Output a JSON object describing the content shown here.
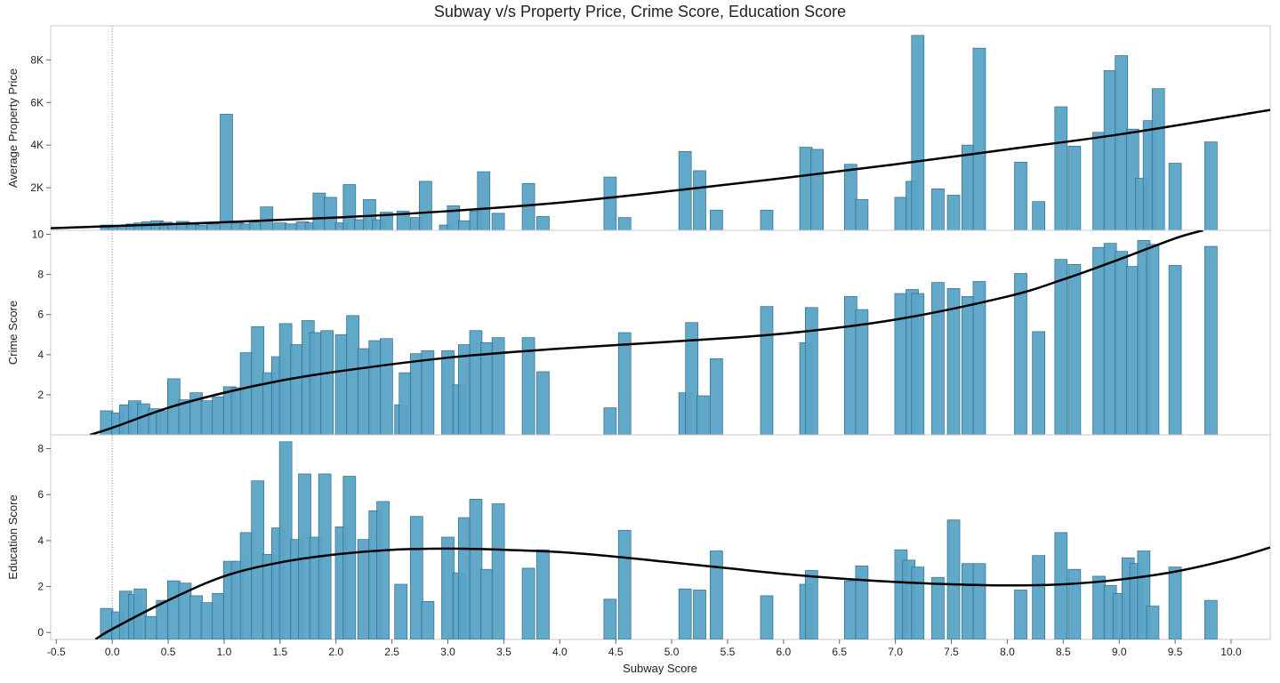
{
  "chart_data": {
    "type": "bar",
    "title": "Subway v/s Property Price, Crime Score, Education Score",
    "xlabel": "Subway Score",
    "xlim": [
      -0.55,
      10.35
    ],
    "x_ticks": [
      {
        "v": -0.5,
        "label": "-0.5"
      },
      {
        "v": 0.0,
        "label": "0.0"
      },
      {
        "v": 0.5,
        "label": "0.5"
      },
      {
        "v": 1.0,
        "label": "1.0"
      },
      {
        "v": 1.5,
        "label": "1.5"
      },
      {
        "v": 2.0,
        "label": "2.0"
      },
      {
        "v": 2.5,
        "label": "2.5"
      },
      {
        "v": 3.0,
        "label": "3.0"
      },
      {
        "v": 3.5,
        "label": "3.5"
      },
      {
        "v": 4.0,
        "label": "4.0"
      },
      {
        "v": 4.5,
        "label": "4.5"
      },
      {
        "v": 5.0,
        "label": "5.0"
      },
      {
        "v": 5.5,
        "label": "5.5"
      },
      {
        "v": 6.0,
        "label": "6.0"
      },
      {
        "v": 6.5,
        "label": "6.5"
      },
      {
        "v": 7.0,
        "label": "7.0"
      },
      {
        "v": 7.5,
        "label": "7.5"
      },
      {
        "v": 8.0,
        "label": "8.0"
      },
      {
        "v": 8.5,
        "label": "8.5"
      },
      {
        "v": 9.0,
        "label": "9.0"
      },
      {
        "v": 9.5,
        "label": "9.5"
      },
      {
        "v": 10.0,
        "label": "10.0"
      }
    ],
    "bar_color": "#5aa3c6",
    "bar_border_color": "#2f6d8f",
    "trend_color": "#000000",
    "panels": [
      {
        "ylabel": "Average Property Price",
        "ylim": [
          0,
          9600
        ],
        "y_ticks": [
          {
            "v": 2000,
            "label": "2K"
          },
          {
            "v": 4000,
            "label": "4K"
          },
          {
            "v": 6000,
            "label": "6K"
          },
          {
            "v": 8000,
            "label": "8K"
          }
        ],
        "trend": {
          "x": [
            -0.55,
            0.0,
            1.0,
            2.0,
            3.0,
            4.0,
            5.0,
            6.0,
            7.0,
            8.0,
            9.0,
            10.35
          ],
          "y": [
            100,
            200,
            380,
            600,
            900,
            1300,
            1850,
            2450,
            3100,
            3800,
            4500,
            5650
          ]
        },
        "bars": [
          {
            "x": -0.05,
            "y": 250
          },
          {
            "x": 0.02,
            "y": 200
          },
          {
            "x": 0.1,
            "y": 230
          },
          {
            "x": 0.18,
            "y": 300
          },
          {
            "x": 0.25,
            "y": 350
          },
          {
            "x": 0.32,
            "y": 400
          },
          {
            "x": 0.4,
            "y": 450
          },
          {
            "x": 0.48,
            "y": 380
          },
          {
            "x": 0.55,
            "y": 300
          },
          {
            "x": 0.63,
            "y": 420
          },
          {
            "x": 0.72,
            "y": 280
          },
          {
            "x": 0.8,
            "y": 250
          },
          {
            "x": 0.9,
            "y": 300
          },
          {
            "x": 1.02,
            "y": 5450
          },
          {
            "x": 1.12,
            "y": 350
          },
          {
            "x": 1.2,
            "y": 300
          },
          {
            "x": 1.28,
            "y": 400
          },
          {
            "x": 1.38,
            "y": 1100
          },
          {
            "x": 1.5,
            "y": 350
          },
          {
            "x": 1.6,
            "y": 300
          },
          {
            "x": 1.7,
            "y": 400
          },
          {
            "x": 1.78,
            "y": 350
          },
          {
            "x": 1.85,
            "y": 1750
          },
          {
            "x": 1.95,
            "y": 1550
          },
          {
            "x": 2.05,
            "y": 350
          },
          {
            "x": 2.12,
            "y": 2150
          },
          {
            "x": 2.22,
            "y": 500
          },
          {
            "x": 2.3,
            "y": 1450
          },
          {
            "x": 2.38,
            "y": 500
          },
          {
            "x": 2.45,
            "y": 850
          },
          {
            "x": 2.6,
            "y": 900
          },
          {
            "x": 2.72,
            "y": 600
          },
          {
            "x": 2.8,
            "y": 2300
          },
          {
            "x": 2.98,
            "y": 250
          },
          {
            "x": 3.05,
            "y": 1150
          },
          {
            "x": 3.15,
            "y": 450
          },
          {
            "x": 3.25,
            "y": 900
          },
          {
            "x": 3.32,
            "y": 2750
          },
          {
            "x": 3.45,
            "y": 800
          },
          {
            "x": 3.72,
            "y": 2200
          },
          {
            "x": 3.85,
            "y": 650
          },
          {
            "x": 4.45,
            "y": 2500
          },
          {
            "x": 4.58,
            "y": 600
          },
          {
            "x": 5.12,
            "y": 3700
          },
          {
            "x": 5.25,
            "y": 2800
          },
          {
            "x": 5.4,
            "y": 950
          },
          {
            "x": 5.85,
            "y": 950
          },
          {
            "x": 6.2,
            "y": 3900
          },
          {
            "x": 6.3,
            "y": 3800
          },
          {
            "x": 6.6,
            "y": 3100
          },
          {
            "x": 6.7,
            "y": 1450
          },
          {
            "x": 7.05,
            "y": 1550
          },
          {
            "x": 7.15,
            "y": 2300
          },
          {
            "x": 7.2,
            "y": 9150
          },
          {
            "x": 7.38,
            "y": 1950
          },
          {
            "x": 7.52,
            "y": 1650
          },
          {
            "x": 7.65,
            "y": 4000
          },
          {
            "x": 7.75,
            "y": 8550
          },
          {
            "x": 8.12,
            "y": 3200
          },
          {
            "x": 8.28,
            "y": 1350
          },
          {
            "x": 8.48,
            "y": 5800
          },
          {
            "x": 8.6,
            "y": 3950
          },
          {
            "x": 8.82,
            "y": 4600
          },
          {
            "x": 8.92,
            "y": 7500
          },
          {
            "x": 9.02,
            "y": 8200
          },
          {
            "x": 9.12,
            "y": 4750
          },
          {
            "x": 9.2,
            "y": 2450
          },
          {
            "x": 9.27,
            "y": 5150
          },
          {
            "x": 9.35,
            "y": 6650
          },
          {
            "x": 9.5,
            "y": 3150
          },
          {
            "x": 9.82,
            "y": 4150
          }
        ]
      },
      {
        "ylabel": "Crime Score",
        "ylim": [
          0,
          10.2
        ],
        "y_ticks": [
          {
            "v": 2,
            "label": "2"
          },
          {
            "v": 4,
            "label": "4"
          },
          {
            "v": 6,
            "label": "6"
          },
          {
            "v": 8,
            "label": "8"
          },
          {
            "v": 10,
            "label": "10"
          }
        ],
        "trend": {
          "x": [
            -0.2,
            0.0,
            0.5,
            1.0,
            1.5,
            2.0,
            3.0,
            4.0,
            5.0,
            6.0,
            7.0,
            8.0,
            8.5,
            9.0,
            9.5,
            9.75
          ],
          "y": [
            0.0,
            0.35,
            1.35,
            2.1,
            2.7,
            3.15,
            3.85,
            4.3,
            4.65,
            5.05,
            5.75,
            6.9,
            7.75,
            8.75,
            9.8,
            10.2
          ]
        },
        "bars": [
          {
            "x": -0.05,
            "y": 1.2
          },
          {
            "x": 0.05,
            "y": 1.1
          },
          {
            "x": 0.12,
            "y": 1.5
          },
          {
            "x": 0.2,
            "y": 1.7
          },
          {
            "x": 0.28,
            "y": 1.55
          },
          {
            "x": 0.38,
            "y": 1.3
          },
          {
            "x": 0.45,
            "y": 1.2
          },
          {
            "x": 0.55,
            "y": 2.8
          },
          {
            "x": 0.65,
            "y": 1.75
          },
          {
            "x": 0.75,
            "y": 2.1
          },
          {
            "x": 0.85,
            "y": 1.7
          },
          {
            "x": 0.95,
            "y": 1.9
          },
          {
            "x": 1.05,
            "y": 2.4
          },
          {
            "x": 1.12,
            "y": 2.35
          },
          {
            "x": 1.2,
            "y": 4.1
          },
          {
            "x": 1.3,
            "y": 5.4
          },
          {
            "x": 1.4,
            "y": 3.1
          },
          {
            "x": 1.48,
            "y": 3.9
          },
          {
            "x": 1.55,
            "y": 5.55
          },
          {
            "x": 1.65,
            "y": 4.5
          },
          {
            "x": 1.75,
            "y": 5.7
          },
          {
            "x": 1.82,
            "y": 5.1
          },
          {
            "x": 1.92,
            "y": 5.2
          },
          {
            "x": 2.05,
            "y": 5.0
          },
          {
            "x": 2.15,
            "y": 5.95
          },
          {
            "x": 2.25,
            "y": 4.3
          },
          {
            "x": 2.35,
            "y": 4.7
          },
          {
            "x": 2.45,
            "y": 4.8
          },
          {
            "x": 2.58,
            "y": 1.5
          },
          {
            "x": 2.62,
            "y": 3.1
          },
          {
            "x": 2.72,
            "y": 4.05
          },
          {
            "x": 2.82,
            "y": 4.2
          },
          {
            "x": 3.0,
            "y": 4.2
          },
          {
            "x": 3.1,
            "y": 2.5
          },
          {
            "x": 3.15,
            "y": 4.5
          },
          {
            "x": 3.25,
            "y": 5.2
          },
          {
            "x": 3.35,
            "y": 4.6
          },
          {
            "x": 3.45,
            "y": 4.85
          },
          {
            "x": 3.72,
            "y": 4.85
          },
          {
            "x": 3.85,
            "y": 3.15
          },
          {
            "x": 4.45,
            "y": 1.35
          },
          {
            "x": 4.58,
            "y": 5.1
          },
          {
            "x": 5.12,
            "y": 2.1
          },
          {
            "x": 5.18,
            "y": 5.6
          },
          {
            "x": 5.28,
            "y": 1.95
          },
          {
            "x": 5.4,
            "y": 3.8
          },
          {
            "x": 5.85,
            "y": 6.4
          },
          {
            "x": 6.2,
            "y": 4.6
          },
          {
            "x": 6.25,
            "y": 6.35
          },
          {
            "x": 6.6,
            "y": 6.9
          },
          {
            "x": 6.7,
            "y": 6.25
          },
          {
            "x": 7.05,
            "y": 7.05
          },
          {
            "x": 7.15,
            "y": 7.25
          },
          {
            "x": 7.2,
            "y": 7.05
          },
          {
            "x": 7.38,
            "y": 7.6
          },
          {
            "x": 7.52,
            "y": 7.3
          },
          {
            "x": 7.65,
            "y": 6.9
          },
          {
            "x": 7.75,
            "y": 7.65
          },
          {
            "x": 8.12,
            "y": 8.05
          },
          {
            "x": 8.28,
            "y": 5.15
          },
          {
            "x": 8.48,
            "y": 8.75
          },
          {
            "x": 8.6,
            "y": 8.5
          },
          {
            "x": 8.82,
            "y": 9.35
          },
          {
            "x": 8.92,
            "y": 9.55
          },
          {
            "x": 9.02,
            "y": 9.15
          },
          {
            "x": 9.12,
            "y": 8.4
          },
          {
            "x": 9.22,
            "y": 9.7
          },
          {
            "x": 9.3,
            "y": 9.5
          },
          {
            "x": 9.5,
            "y": 8.45
          },
          {
            "x": 9.82,
            "y": 9.4
          }
        ]
      },
      {
        "ylabel": "Education Score",
        "ylim": [
          -0.3,
          8.6
        ],
        "y_ticks": [
          {
            "v": 0,
            "label": "0"
          },
          {
            "v": 2,
            "label": "2"
          },
          {
            "v": 4,
            "label": "4"
          },
          {
            "v": 6,
            "label": "6"
          },
          {
            "v": 8,
            "label": "8"
          }
        ],
        "trend": {
          "x": [
            -0.15,
            0.0,
            0.5,
            1.0,
            1.5,
            2.0,
            2.5,
            3.0,
            3.5,
            4.0,
            4.5,
            5.0,
            5.5,
            6.0,
            6.5,
            7.0,
            7.5,
            8.0,
            8.5,
            9.0,
            9.5,
            10.0,
            10.35
          ],
          "y": [
            -0.3,
            0.15,
            1.4,
            2.45,
            3.05,
            3.4,
            3.6,
            3.65,
            3.6,
            3.5,
            3.3,
            3.05,
            2.8,
            2.55,
            2.35,
            2.2,
            2.1,
            2.05,
            2.1,
            2.3,
            2.65,
            3.2,
            3.7
          ]
        },
        "bars": [
          {
            "x": -0.05,
            "y": 1.05
          },
          {
            "x": 0.05,
            "y": 0.9
          },
          {
            "x": 0.12,
            "y": 1.8
          },
          {
            "x": 0.2,
            "y": 1.65
          },
          {
            "x": 0.25,
            "y": 1.9
          },
          {
            "x": 0.35,
            "y": 0.7
          },
          {
            "x": 0.45,
            "y": 1.4
          },
          {
            "x": 0.55,
            "y": 2.25
          },
          {
            "x": 0.65,
            "y": 2.15
          },
          {
            "x": 0.75,
            "y": 1.6
          },
          {
            "x": 0.85,
            "y": 1.3
          },
          {
            "x": 0.95,
            "y": 1.7
          },
          {
            "x": 1.05,
            "y": 3.1
          },
          {
            "x": 1.12,
            "y": 3.1
          },
          {
            "x": 1.2,
            "y": 4.35
          },
          {
            "x": 1.3,
            "y": 6.6
          },
          {
            "x": 1.4,
            "y": 3.4
          },
          {
            "x": 1.48,
            "y": 4.55
          },
          {
            "x": 1.55,
            "y": 8.3
          },
          {
            "x": 1.65,
            "y": 4.05
          },
          {
            "x": 1.72,
            "y": 6.9
          },
          {
            "x": 1.82,
            "y": 4.15
          },
          {
            "x": 1.9,
            "y": 6.9
          },
          {
            "x": 2.05,
            "y": 4.6
          },
          {
            "x": 2.12,
            "y": 6.8
          },
          {
            "x": 2.25,
            "y": 4.05
          },
          {
            "x": 2.35,
            "y": 5.3
          },
          {
            "x": 2.42,
            "y": 5.7
          },
          {
            "x": 2.58,
            "y": 2.1
          },
          {
            "x": 2.72,
            "y": 5.05
          },
          {
            "x": 2.82,
            "y": 1.35
          },
          {
            "x": 3.0,
            "y": 4.15
          },
          {
            "x": 3.1,
            "y": 2.6
          },
          {
            "x": 3.15,
            "y": 5.0
          },
          {
            "x": 3.25,
            "y": 5.8
          },
          {
            "x": 3.35,
            "y": 2.75
          },
          {
            "x": 3.45,
            "y": 5.6
          },
          {
            "x": 3.72,
            "y": 2.8
          },
          {
            "x": 3.85,
            "y": 3.6
          },
          {
            "x": 4.45,
            "y": 1.45
          },
          {
            "x": 4.58,
            "y": 4.45
          },
          {
            "x": 5.12,
            "y": 1.9
          },
          {
            "x": 5.25,
            "y": 1.85
          },
          {
            "x": 5.4,
            "y": 3.55
          },
          {
            "x": 5.85,
            "y": 1.6
          },
          {
            "x": 6.2,
            "y": 2.1
          },
          {
            "x": 6.25,
            "y": 2.7
          },
          {
            "x": 6.6,
            "y": 2.25
          },
          {
            "x": 6.7,
            "y": 2.9
          },
          {
            "x": 7.05,
            "y": 3.6
          },
          {
            "x": 7.12,
            "y": 3.15
          },
          {
            "x": 7.2,
            "y": 2.85
          },
          {
            "x": 7.38,
            "y": 2.4
          },
          {
            "x": 7.52,
            "y": 4.9
          },
          {
            "x": 7.65,
            "y": 3.0
          },
          {
            "x": 7.75,
            "y": 3.0
          },
          {
            "x": 8.12,
            "y": 1.85
          },
          {
            "x": 8.28,
            "y": 3.35
          },
          {
            "x": 8.48,
            "y": 4.35
          },
          {
            "x": 8.6,
            "y": 2.75
          },
          {
            "x": 8.82,
            "y": 2.45
          },
          {
            "x": 8.92,
            "y": 2.05
          },
          {
            "x": 9.0,
            "y": 1.7
          },
          {
            "x": 9.08,
            "y": 3.25
          },
          {
            "x": 9.15,
            "y": 3.0
          },
          {
            "x": 9.22,
            "y": 3.55
          },
          {
            "x": 9.3,
            "y": 1.15
          },
          {
            "x": 9.5,
            "y": 2.85
          },
          {
            "x": 9.82,
            "y": 1.4
          }
        ]
      }
    ]
  }
}
